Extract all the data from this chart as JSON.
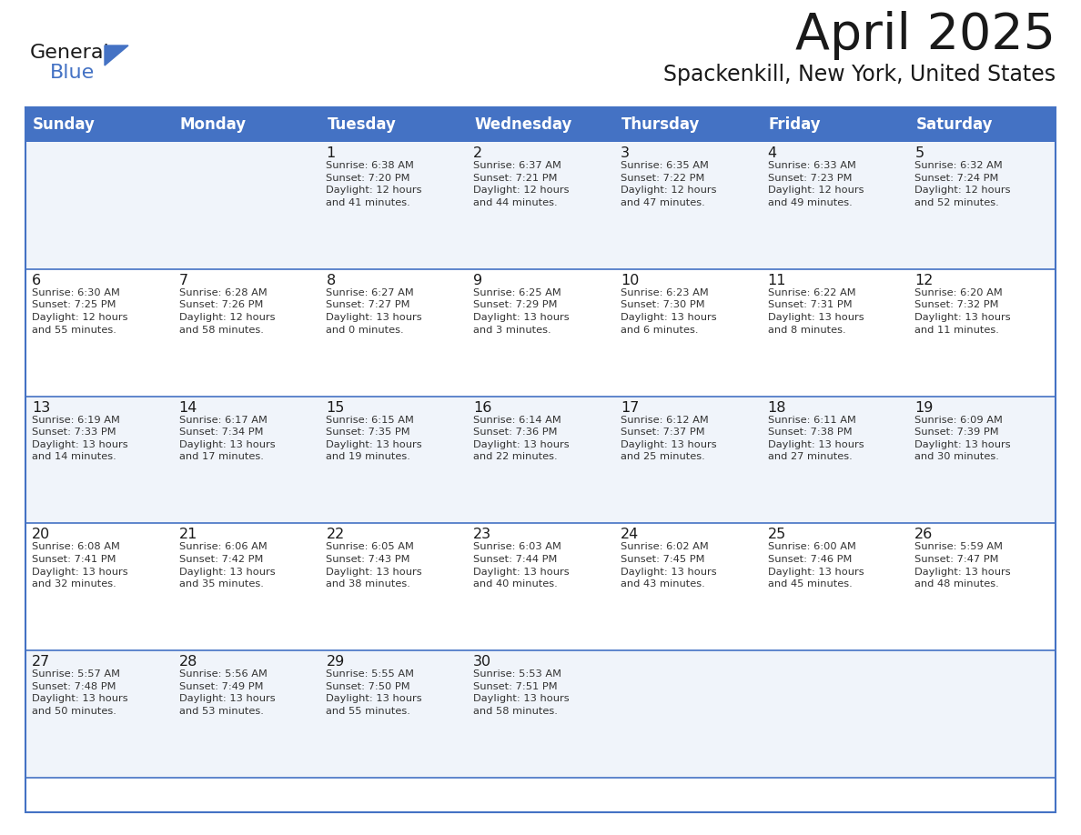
{
  "title": "April 2025",
  "subtitle": "Spackenkill, New York, United States",
  "header_bg_color": "#4472C4",
  "header_text_color": "#FFFFFF",
  "cell_bg_even": "#F0F4FA",
  "cell_bg_odd": "#FFFFFF",
  "cell_border_color": "#4472C4",
  "title_color": "#1a1a1a",
  "subtitle_color": "#1a1a1a",
  "text_color": "#333333",
  "day_headers": [
    "Sunday",
    "Monday",
    "Tuesday",
    "Wednesday",
    "Thursday",
    "Friday",
    "Saturday"
  ],
  "weeks": [
    [
      {
        "day": "",
        "info": ""
      },
      {
        "day": "",
        "info": ""
      },
      {
        "day": "1",
        "info": "Sunrise: 6:38 AM\nSunset: 7:20 PM\nDaylight: 12 hours\nand 41 minutes."
      },
      {
        "day": "2",
        "info": "Sunrise: 6:37 AM\nSunset: 7:21 PM\nDaylight: 12 hours\nand 44 minutes."
      },
      {
        "day": "3",
        "info": "Sunrise: 6:35 AM\nSunset: 7:22 PM\nDaylight: 12 hours\nand 47 minutes."
      },
      {
        "day": "4",
        "info": "Sunrise: 6:33 AM\nSunset: 7:23 PM\nDaylight: 12 hours\nand 49 minutes."
      },
      {
        "day": "5",
        "info": "Sunrise: 6:32 AM\nSunset: 7:24 PM\nDaylight: 12 hours\nand 52 minutes."
      }
    ],
    [
      {
        "day": "6",
        "info": "Sunrise: 6:30 AM\nSunset: 7:25 PM\nDaylight: 12 hours\nand 55 minutes."
      },
      {
        "day": "7",
        "info": "Sunrise: 6:28 AM\nSunset: 7:26 PM\nDaylight: 12 hours\nand 58 minutes."
      },
      {
        "day": "8",
        "info": "Sunrise: 6:27 AM\nSunset: 7:27 PM\nDaylight: 13 hours\nand 0 minutes."
      },
      {
        "day": "9",
        "info": "Sunrise: 6:25 AM\nSunset: 7:29 PM\nDaylight: 13 hours\nand 3 minutes."
      },
      {
        "day": "10",
        "info": "Sunrise: 6:23 AM\nSunset: 7:30 PM\nDaylight: 13 hours\nand 6 minutes."
      },
      {
        "day": "11",
        "info": "Sunrise: 6:22 AM\nSunset: 7:31 PM\nDaylight: 13 hours\nand 8 minutes."
      },
      {
        "day": "12",
        "info": "Sunrise: 6:20 AM\nSunset: 7:32 PM\nDaylight: 13 hours\nand 11 minutes."
      }
    ],
    [
      {
        "day": "13",
        "info": "Sunrise: 6:19 AM\nSunset: 7:33 PM\nDaylight: 13 hours\nand 14 minutes."
      },
      {
        "day": "14",
        "info": "Sunrise: 6:17 AM\nSunset: 7:34 PM\nDaylight: 13 hours\nand 17 minutes."
      },
      {
        "day": "15",
        "info": "Sunrise: 6:15 AM\nSunset: 7:35 PM\nDaylight: 13 hours\nand 19 minutes."
      },
      {
        "day": "16",
        "info": "Sunrise: 6:14 AM\nSunset: 7:36 PM\nDaylight: 13 hours\nand 22 minutes."
      },
      {
        "day": "17",
        "info": "Sunrise: 6:12 AM\nSunset: 7:37 PM\nDaylight: 13 hours\nand 25 minutes."
      },
      {
        "day": "18",
        "info": "Sunrise: 6:11 AM\nSunset: 7:38 PM\nDaylight: 13 hours\nand 27 minutes."
      },
      {
        "day": "19",
        "info": "Sunrise: 6:09 AM\nSunset: 7:39 PM\nDaylight: 13 hours\nand 30 minutes."
      }
    ],
    [
      {
        "day": "20",
        "info": "Sunrise: 6:08 AM\nSunset: 7:41 PM\nDaylight: 13 hours\nand 32 minutes."
      },
      {
        "day": "21",
        "info": "Sunrise: 6:06 AM\nSunset: 7:42 PM\nDaylight: 13 hours\nand 35 minutes."
      },
      {
        "day": "22",
        "info": "Sunrise: 6:05 AM\nSunset: 7:43 PM\nDaylight: 13 hours\nand 38 minutes."
      },
      {
        "day": "23",
        "info": "Sunrise: 6:03 AM\nSunset: 7:44 PM\nDaylight: 13 hours\nand 40 minutes."
      },
      {
        "day": "24",
        "info": "Sunrise: 6:02 AM\nSunset: 7:45 PM\nDaylight: 13 hours\nand 43 minutes."
      },
      {
        "day": "25",
        "info": "Sunrise: 6:00 AM\nSunset: 7:46 PM\nDaylight: 13 hours\nand 45 minutes."
      },
      {
        "day": "26",
        "info": "Sunrise: 5:59 AM\nSunset: 7:47 PM\nDaylight: 13 hours\nand 48 minutes."
      }
    ],
    [
      {
        "day": "27",
        "info": "Sunrise: 5:57 AM\nSunset: 7:48 PM\nDaylight: 13 hours\nand 50 minutes."
      },
      {
        "day": "28",
        "info": "Sunrise: 5:56 AM\nSunset: 7:49 PM\nDaylight: 13 hours\nand 53 minutes."
      },
      {
        "day": "29",
        "info": "Sunrise: 5:55 AM\nSunset: 7:50 PM\nDaylight: 13 hours\nand 55 minutes."
      },
      {
        "day": "30",
        "info": "Sunrise: 5:53 AM\nSunset: 7:51 PM\nDaylight: 13 hours\nand 58 minutes."
      },
      {
        "day": "",
        "info": ""
      },
      {
        "day": "",
        "info": ""
      },
      {
        "day": "",
        "info": ""
      }
    ]
  ],
  "logo_text1": "General",
  "logo_text2": "Blue",
  "logo_triangle_color": "#4472C4",
  "logo_text1_color": "#1a1a1a"
}
